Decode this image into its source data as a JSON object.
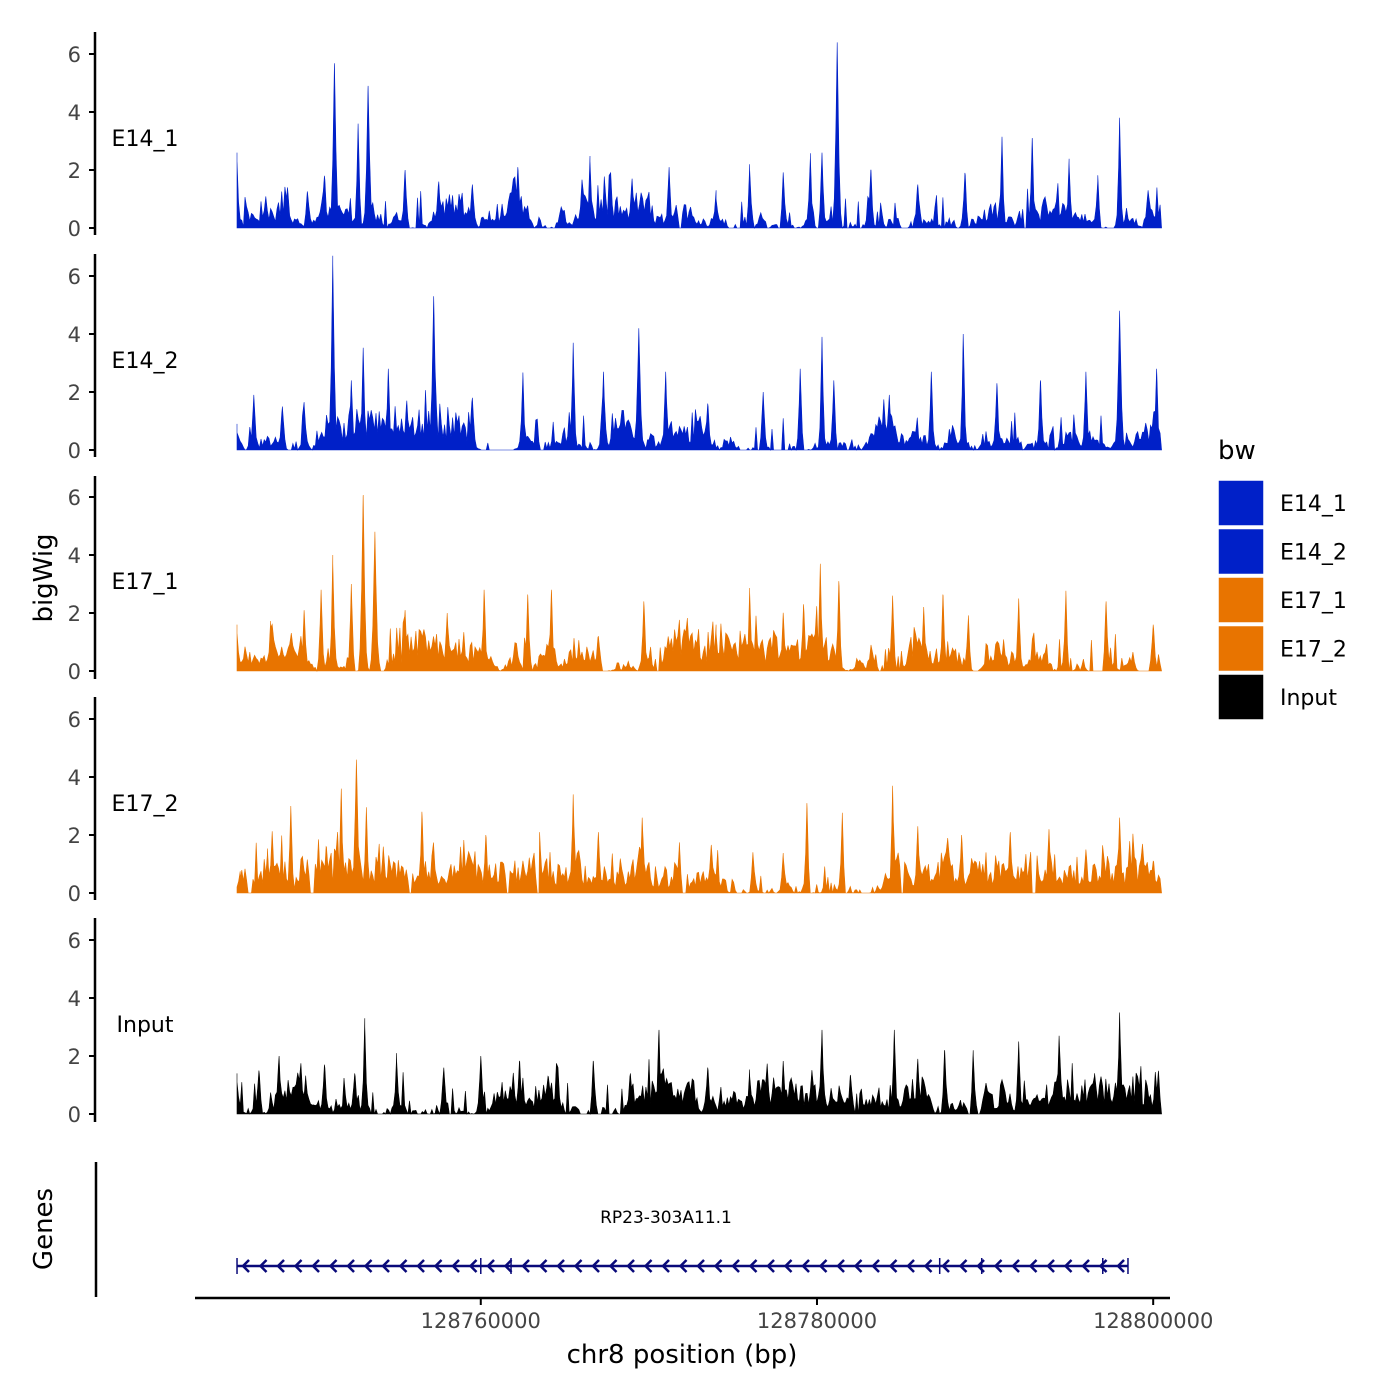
{
  "chart_data": {
    "type": "area",
    "ylabel": "bigWig",
    "gene_track_label": "Genes",
    "xlabel": "chr8 position (bp)",
    "xlim": [
      128743000,
      128801000
    ],
    "x_ticks": [
      128760000,
      128780000,
      128800000
    ],
    "x_tick_labels": [
      "128760000",
      "128780000",
      "128800000"
    ],
    "data_x_range": [
      128745500,
      128800500
    ],
    "ylim": [
      0,
      6.5
    ],
    "y_ticks": [
      0,
      2,
      4,
      6
    ],
    "y_tick_labels": [
      "0",
      "2",
      "4",
      "6"
    ],
    "legend": {
      "title": "bw",
      "entries": [
        "E14_1",
        "E14_2",
        "E17_1",
        "E17_2",
        "Input"
      ],
      "position": "right"
    },
    "series": [
      {
        "name": "E14_1",
        "color": "#0020C8",
        "peaks": [
          {
            "x": 128745500,
            "y": 2.3
          },
          {
            "x": 128748500,
            "y": 1.4
          },
          {
            "x": 128749700,
            "y": 1.2
          },
          {
            "x": 128750700,
            "y": 1.8
          },
          {
            "x": 128751300,
            "y": 5.6
          },
          {
            "x": 128752700,
            "y": 3.6
          },
          {
            "x": 128753300,
            "y": 4.9
          },
          {
            "x": 128755500,
            "y": 2.0
          },
          {
            "x": 128757500,
            "y": 1.6
          },
          {
            "x": 128759500,
            "y": 1.5
          },
          {
            "x": 128762200,
            "y": 2.1
          },
          {
            "x": 128766500,
            "y": 2.3
          },
          {
            "x": 128769000,
            "y": 1.7
          },
          {
            "x": 128771200,
            "y": 2.1
          },
          {
            "x": 128774000,
            "y": 1.0
          },
          {
            "x": 128776000,
            "y": 2.0
          },
          {
            "x": 128778000,
            "y": 1.8
          },
          {
            "x": 128779600,
            "y": 2.4
          },
          {
            "x": 128780300,
            "y": 2.6
          },
          {
            "x": 128781200,
            "y": 6.4
          },
          {
            "x": 128783200,
            "y": 2.0
          },
          {
            "x": 128786000,
            "y": 1.5
          },
          {
            "x": 128788800,
            "y": 1.9
          },
          {
            "x": 128791000,
            "y": 3.0
          },
          {
            "x": 128792800,
            "y": 3.1
          },
          {
            "x": 128795000,
            "y": 2.2
          },
          {
            "x": 128796700,
            "y": 1.6
          },
          {
            "x": 128798000,
            "y": 3.8
          },
          {
            "x": 128799700,
            "y": 1.3
          }
        ],
        "gaps": [
          [
            128771800,
            128772000
          ],
          [
            128774900,
            128775100
          ],
          [
            128777000,
            128777200
          ],
          [
            128792300,
            128792500
          ]
        ]
      },
      {
        "name": "E14_2",
        "color": "#0020C8",
        "peaks": [
          {
            "x": 128745500,
            "y": 0.6
          },
          {
            "x": 128746500,
            "y": 1.9
          },
          {
            "x": 128748200,
            "y": 1.5
          },
          {
            "x": 128749500,
            "y": 1.5
          },
          {
            "x": 128751200,
            "y": 6.4
          },
          {
            "x": 128752300,
            "y": 2.4
          },
          {
            "x": 128753000,
            "y": 3.4
          },
          {
            "x": 128754500,
            "y": 2.8
          },
          {
            "x": 128755600,
            "y": 1.7
          },
          {
            "x": 128757200,
            "y": 5.3
          },
          {
            "x": 128759500,
            "y": 1.8
          },
          {
            "x": 128762500,
            "y": 2.5
          },
          {
            "x": 128765500,
            "y": 3.7
          },
          {
            "x": 128767300,
            "y": 2.7
          },
          {
            "x": 128769400,
            "y": 4.2
          },
          {
            "x": 128771000,
            "y": 2.7
          },
          {
            "x": 128773500,
            "y": 1.6
          },
          {
            "x": 128776800,
            "y": 2.0
          },
          {
            "x": 128779000,
            "y": 2.8
          },
          {
            "x": 128780300,
            "y": 3.9
          },
          {
            "x": 128781000,
            "y": 2.4
          },
          {
            "x": 128784300,
            "y": 1.9
          },
          {
            "x": 128786800,
            "y": 2.7
          },
          {
            "x": 128788700,
            "y": 4.0
          },
          {
            "x": 128790700,
            "y": 2.3
          },
          {
            "x": 128793300,
            "y": 2.4
          },
          {
            "x": 128796000,
            "y": 2.7
          },
          {
            "x": 128798000,
            "y": 4.8
          },
          {
            "x": 128800200,
            "y": 2.8
          }
        ],
        "gaps": [
          [
            128760500,
            128762000
          ],
          [
            128763500,
            128763800
          ]
        ]
      },
      {
        "name": "E17_1",
        "color": "#E87400",
        "peaks": [
          {
            "x": 128745500,
            "y": 1.3
          },
          {
            "x": 128747500,
            "y": 1.5
          },
          {
            "x": 128749500,
            "y": 2.0
          },
          {
            "x": 128750500,
            "y": 2.8
          },
          {
            "x": 128751200,
            "y": 3.7
          },
          {
            "x": 128752300,
            "y": 3.0
          },
          {
            "x": 128753000,
            "y": 6.0
          },
          {
            "x": 128753700,
            "y": 4.8
          },
          {
            "x": 128755500,
            "y": 2.1
          },
          {
            "x": 128758000,
            "y": 2.0
          },
          {
            "x": 128760200,
            "y": 2.8
          },
          {
            "x": 128762800,
            "y": 2.6
          },
          {
            "x": 128764200,
            "y": 2.8
          },
          {
            "x": 128767000,
            "y": 1.2
          },
          {
            "x": 128769700,
            "y": 2.4
          },
          {
            "x": 128772300,
            "y": 1.7
          },
          {
            "x": 128774000,
            "y": 1.3
          },
          {
            "x": 128776000,
            "y": 2.7
          },
          {
            "x": 128778000,
            "y": 1.9
          },
          {
            "x": 128779200,
            "y": 2.3
          },
          {
            "x": 128780200,
            "y": 3.7
          },
          {
            "x": 128781300,
            "y": 3.1
          },
          {
            "x": 128784500,
            "y": 2.6
          },
          {
            "x": 128787500,
            "y": 2.6
          },
          {
            "x": 128789000,
            "y": 1.8
          },
          {
            "x": 128792000,
            "y": 2.5
          },
          {
            "x": 128794800,
            "y": 2.6
          },
          {
            "x": 128797200,
            "y": 2.4
          },
          {
            "x": 128800000,
            "y": 1.6
          }
        ],
        "gaps": [
          [
            128770400,
            128770600
          ],
          [
            128783600,
            128783800
          ],
          [
            128796600,
            128796900
          ],
          [
            128799300,
            128799500
          ]
        ]
      },
      {
        "name": "E17_2",
        "color": "#E87400",
        "peaks": [
          {
            "x": 128745700,
            "y": 0.5
          },
          {
            "x": 128747300,
            "y": 1.3
          },
          {
            "x": 128748700,
            "y": 3.0
          },
          {
            "x": 128750800,
            "y": 1.6
          },
          {
            "x": 128751700,
            "y": 3.6
          },
          {
            "x": 128752600,
            "y": 4.6
          },
          {
            "x": 128753200,
            "y": 2.8
          },
          {
            "x": 128754200,
            "y": 1.6
          },
          {
            "x": 128756500,
            "y": 2.8
          },
          {
            "x": 128759000,
            "y": 1.7
          },
          {
            "x": 128760300,
            "y": 2.0
          },
          {
            "x": 128763500,
            "y": 2.1
          },
          {
            "x": 128765500,
            "y": 3.4
          },
          {
            "x": 128767000,
            "y": 2.1
          },
          {
            "x": 128769600,
            "y": 2.6
          },
          {
            "x": 128771800,
            "y": 1.5
          },
          {
            "x": 128773700,
            "y": 1.6
          },
          {
            "x": 128776200,
            "y": 1.3
          },
          {
            "x": 128778000,
            "y": 1.2
          },
          {
            "x": 128779400,
            "y": 3.1
          },
          {
            "x": 128781500,
            "y": 2.6
          },
          {
            "x": 128784500,
            "y": 3.7
          },
          {
            "x": 128786000,
            "y": 2.3
          },
          {
            "x": 128788600,
            "y": 2.0
          },
          {
            "x": 128791500,
            "y": 2.1
          },
          {
            "x": 128793800,
            "y": 2.2
          },
          {
            "x": 128796000,
            "y": 1.5
          },
          {
            "x": 128798000,
            "y": 2.6
          },
          {
            "x": 128800000,
            "y": 1.1
          }
        ],
        "gaps": [
          [
            128746100,
            128746400
          ],
          [
            128749800,
            128750100
          ],
          [
            128755700,
            128755900
          ],
          [
            128761500,
            128761700
          ],
          [
            128763300,
            128763500
          ],
          [
            128772000,
            128772200
          ],
          [
            128785000,
            128785200
          ],
          [
            128792800,
            128793000
          ]
        ]
      },
      {
        "name": "Input",
        "color": "#000000",
        "peaks": [
          {
            "x": 128745500,
            "y": 1.1
          },
          {
            "x": 128746800,
            "y": 1.5
          },
          {
            "x": 128748000,
            "y": 2.0
          },
          {
            "x": 128749600,
            "y": 1.2
          },
          {
            "x": 128750700,
            "y": 1.7
          },
          {
            "x": 128752500,
            "y": 1.4
          },
          {
            "x": 128753100,
            "y": 3.0
          },
          {
            "x": 128755000,
            "y": 1.8
          },
          {
            "x": 128757800,
            "y": 1.6
          },
          {
            "x": 128760000,
            "y": 2.0
          },
          {
            "x": 128762300,
            "y": 1.8
          },
          {
            "x": 128764000,
            "y": 1.3
          },
          {
            "x": 128766700,
            "y": 1.8
          },
          {
            "x": 128768900,
            "y": 1.4
          },
          {
            "x": 128770600,
            "y": 2.9
          },
          {
            "x": 128773500,
            "y": 1.6
          },
          {
            "x": 128776000,
            "y": 1.3
          },
          {
            "x": 128778000,
            "y": 1.7
          },
          {
            "x": 128780300,
            "y": 2.9
          },
          {
            "x": 128782000,
            "y": 1.3
          },
          {
            "x": 128784600,
            "y": 2.9
          },
          {
            "x": 128786000,
            "y": 1.9
          },
          {
            "x": 128787600,
            "y": 2.2
          },
          {
            "x": 128789300,
            "y": 2.0
          },
          {
            "x": 128792000,
            "y": 2.5
          },
          {
            "x": 128794400,
            "y": 2.7
          },
          {
            "x": 128796500,
            "y": 1.3
          },
          {
            "x": 128798000,
            "y": 3.5
          },
          {
            "x": 128800300,
            "y": 1.4
          }
        ],
        "gaps": []
      }
    ],
    "gene": {
      "name": "RP23-303A11.1",
      "start": 128745500,
      "end": 128798500,
      "strand": "-",
      "color": "#0A0A7A",
      "junctions": [
        128760000,
        128761800,
        128787300,
        128789800,
        128797000
      ]
    }
  }
}
